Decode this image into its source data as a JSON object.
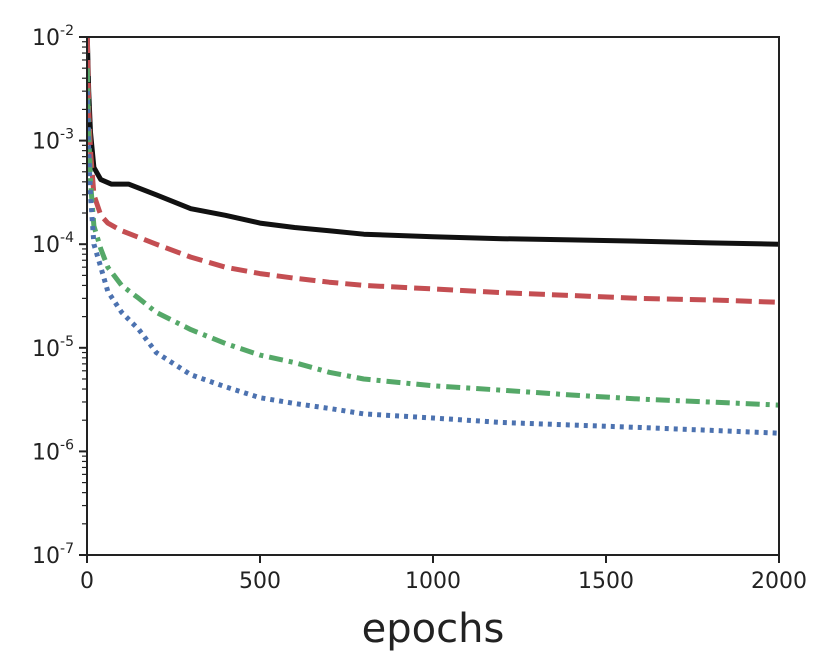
{
  "chart_data": {
    "type": "line",
    "title": "",
    "xlabel": "epochs",
    "ylabel": "",
    "xlim": [
      0,
      2000
    ],
    "ylim": [
      1e-07,
      0.01
    ],
    "yscale": "log",
    "grid": false,
    "x_ticks": [
      "0",
      "500",
      "1000",
      "1500",
      "2000"
    ],
    "y_ticks": [
      {
        "base": "10",
        "exp": "-7"
      },
      {
        "base": "10",
        "exp": "-6"
      },
      {
        "base": "10",
        "exp": "-5"
      },
      {
        "base": "10",
        "exp": "-4"
      },
      {
        "base": "10",
        "exp": "-3"
      },
      {
        "base": "10",
        "exp": "-2"
      }
    ],
    "series": [
      {
        "color": "#111111",
        "style": "solid",
        "points": [
          [
            1,
            0.01
          ],
          [
            5,
            0.003
          ],
          [
            10,
            0.0012
          ],
          [
            20,
            0.00055
          ],
          [
            40,
            0.00042
          ],
          [
            70,
            0.00038
          ],
          [
            120,
            0.00038
          ],
          [
            200,
            0.0003
          ],
          [
            300,
            0.00022
          ],
          [
            400,
            0.00019
          ],
          [
            500,
            0.00016
          ],
          [
            600,
            0.000145
          ],
          [
            700,
            0.000135
          ],
          [
            800,
            0.000125
          ],
          [
            1000,
            0.000118
          ],
          [
            1200,
            0.000113
          ],
          [
            1400,
            0.00011
          ],
          [
            1600,
            0.000107
          ],
          [
            1800,
            0.000103
          ],
          [
            2000,
            0.0001
          ]
        ]
      },
      {
        "color": "#c44e52",
        "style": "dashed",
        "points": [
          [
            1,
            0.01
          ],
          [
            5,
            0.002
          ],
          [
            10,
            0.0008
          ],
          [
            20,
            0.0003
          ],
          [
            40,
            0.00019
          ],
          [
            60,
            0.00016
          ],
          [
            100,
            0.000135
          ],
          [
            200,
            0.0001
          ],
          [
            300,
            7.5e-05
          ],
          [
            400,
            6e-05
          ],
          [
            500,
            5.2e-05
          ],
          [
            600,
            4.7e-05
          ],
          [
            700,
            4.3e-05
          ],
          [
            800,
            4e-05
          ],
          [
            1000,
            3.7e-05
          ],
          [
            1200,
            3.4e-05
          ],
          [
            1400,
            3.2e-05
          ],
          [
            1600,
            3e-05
          ],
          [
            1800,
            2.9e-05
          ],
          [
            2000,
            2.75e-05
          ]
        ]
      },
      {
        "color": "#55a868",
        "style": "dashdot",
        "points": [
          [
            1,
            0.005
          ],
          [
            5,
            0.0012
          ],
          [
            10,
            0.0004
          ],
          [
            20,
            0.00015
          ],
          [
            40,
            9e-05
          ],
          [
            60,
            6e-05
          ],
          [
            100,
            4e-05
          ],
          [
            150,
            3e-05
          ],
          [
            200,
            2.2e-05
          ],
          [
            300,
            1.5e-05
          ],
          [
            400,
            1.1e-05
          ],
          [
            500,
            8.5e-06
          ],
          [
            600,
            7.2e-06
          ],
          [
            700,
            5.8e-06
          ],
          [
            800,
            5e-06
          ],
          [
            1000,
            4.3e-06
          ],
          [
            1200,
            3.9e-06
          ],
          [
            1400,
            3.5e-06
          ],
          [
            1600,
            3.2e-06
          ],
          [
            1800,
            3e-06
          ],
          [
            2000,
            2.8e-06
          ]
        ]
      },
      {
        "color": "#4c72b0",
        "style": "dotted",
        "points": [
          [
            1,
            0.003
          ],
          [
            5,
            0.0008
          ],
          [
            10,
            0.0003
          ],
          [
            20,
            0.0001
          ],
          [
            40,
            6e-05
          ],
          [
            60,
            3.5e-05
          ],
          [
            100,
            2.2e-05
          ],
          [
            150,
            1.5e-05
          ],
          [
            200,
            9e-06
          ],
          [
            300,
            5.5e-06
          ],
          [
            400,
            4.2e-06
          ],
          [
            500,
            3.3e-06
          ],
          [
            600,
            2.9e-06
          ],
          [
            700,
            2.6e-06
          ],
          [
            800,
            2.3e-06
          ],
          [
            1000,
            2.1e-06
          ],
          [
            1200,
            1.9e-06
          ],
          [
            1400,
            1.8e-06
          ],
          [
            1600,
            1.7e-06
          ],
          [
            1800,
            1.6e-06
          ],
          [
            2000,
            1.5e-06
          ]
        ]
      }
    ]
  }
}
